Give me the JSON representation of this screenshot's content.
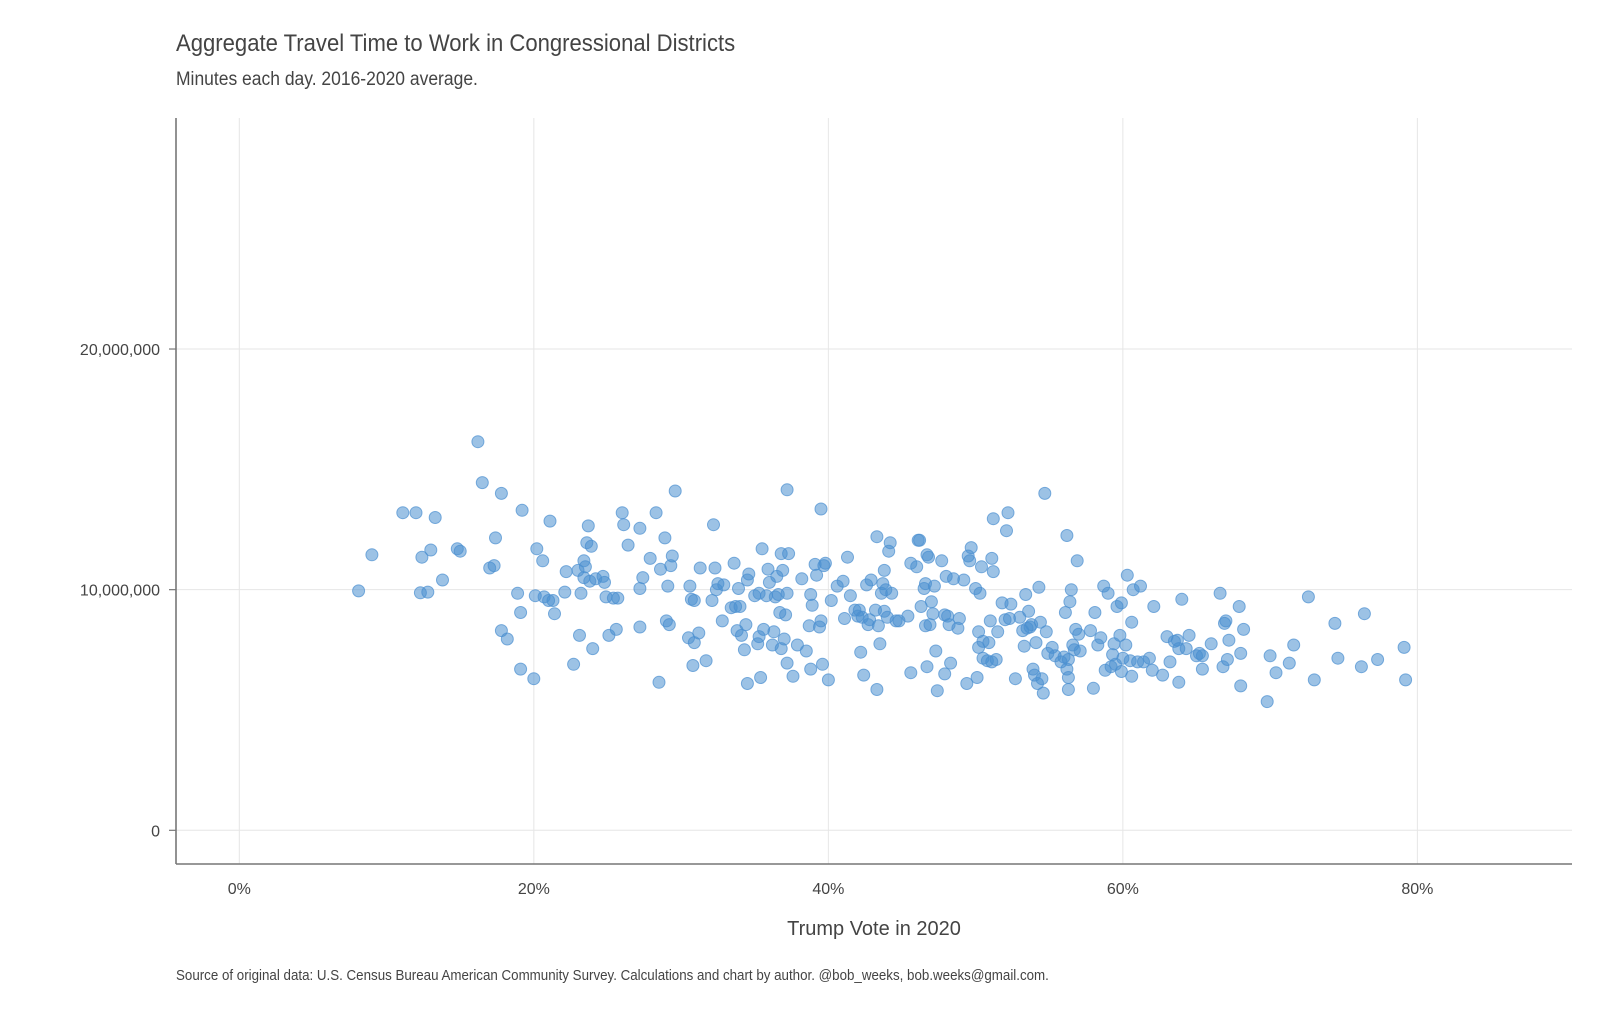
{
  "title": "Aggregate Travel Time to Work in Congressional Districts",
  "subtitle": "Minutes each day. 2016-2020 average.",
  "caption": "Source of original data: U.S. Census Bureau American Community Survey. Calculations and chart by author. @bob_weeks, bob.weeks@gmail.com.",
  "colors": {
    "point": "#4a8fd0",
    "grid": "#e6e6e6",
    "axis": "#777777",
    "text": "#444444"
  },
  "chart_data": {
    "type": "scatter",
    "title": "Aggregate Travel Time to Work in Congressional Districts",
    "subtitle": "Minutes each day. 2016-2020 average.",
    "xlabel": "Trump Vote in 2020",
    "ylabel": "",
    "xlim": [
      -0.043,
      0.905
    ],
    "ylim": [
      -1400000,
      29600000
    ],
    "x_ticks": [
      0,
      0.2,
      0.4,
      0.6,
      0.8
    ],
    "x_tick_labels": [
      "0%",
      "20%",
      "40%",
      "60%",
      "80%"
    ],
    "y_ticks": [
      0,
      10000000,
      20000000
    ],
    "y_tick_labels": [
      "0",
      "10,000,000",
      "20,000,000"
    ],
    "grid": true,
    "legend": "none",
    "points": [
      [
        0.081,
        9950000
      ],
      [
        0.09,
        11450000
      ],
      [
        0.111,
        13200000
      ],
      [
        0.12,
        13200000
      ],
      [
        0.123,
        9870000
      ],
      [
        0.124,
        11350000
      ],
      [
        0.128,
        9900000
      ],
      [
        0.13,
        11650000
      ],
      [
        0.133,
        13000000
      ],
      [
        0.138,
        10400000
      ],
      [
        0.148,
        11700000
      ],
      [
        0.15,
        11600000
      ],
      [
        0.162,
        16150000
      ],
      [
        0.165,
        14450000
      ],
      [
        0.17,
        10900000
      ],
      [
        0.173,
        11000000
      ],
      [
        0.174,
        12150000
      ],
      [
        0.178,
        14000000
      ],
      [
        0.178,
        8300000
      ],
      [
        0.182,
        7950000
      ],
      [
        0.189,
        9850000
      ],
      [
        0.191,
        9050000
      ],
      [
        0.191,
        6700000
      ],
      [
        0.192,
        13300000
      ],
      [
        0.2,
        6300000
      ],
      [
        0.201,
        9750000
      ],
      [
        0.202,
        11700000
      ],
      [
        0.206,
        11200000
      ],
      [
        0.207,
        9700000
      ],
      [
        0.21,
        9550000
      ],
      [
        0.211,
        12850000
      ],
      [
        0.213,
        9550000
      ],
      [
        0.214,
        9000000
      ],
      [
        0.221,
        9900000
      ],
      [
        0.222,
        10750000
      ],
      [
        0.227,
        6900000
      ],
      [
        0.23,
        10800000
      ],
      [
        0.231,
        8100000
      ],
      [
        0.232,
        9850000
      ],
      [
        0.234,
        11200000
      ],
      [
        0.234,
        10500000
      ],
      [
        0.235,
        10950000
      ],
      [
        0.236,
        11950000
      ],
      [
        0.237,
        12650000
      ],
      [
        0.238,
        10350000
      ],
      [
        0.239,
        11800000
      ],
      [
        0.24,
        7550000
      ],
      [
        0.242,
        10450000
      ],
      [
        0.247,
        10550000
      ],
      [
        0.248,
        10300000
      ],
      [
        0.249,
        9700000
      ],
      [
        0.251,
        8100000
      ],
      [
        0.254,
        9650000
      ],
      [
        0.256,
        8350000
      ],
      [
        0.257,
        9650000
      ],
      [
        0.26,
        13200000
      ],
      [
        0.261,
        12700000
      ],
      [
        0.264,
        11850000
      ],
      [
        0.272,
        12550000
      ],
      [
        0.272,
        8450000
      ],
      [
        0.272,
        10050000
      ],
      [
        0.274,
        10500000
      ],
      [
        0.279,
        11300000
      ],
      [
        0.283,
        13200000
      ],
      [
        0.285,
        6150000
      ],
      [
        0.286,
        10850000
      ],
      [
        0.289,
        12150000
      ],
      [
        0.29,
        8700000
      ],
      [
        0.291,
        10150000
      ],
      [
        0.292,
        8550000
      ],
      [
        0.293,
        11000000
      ],
      [
        0.294,
        11400000
      ],
      [
        0.296,
        14100000
      ],
      [
        0.305,
        8000000
      ],
      [
        0.306,
        10150000
      ],
      [
        0.307,
        9600000
      ],
      [
        0.308,
        6850000
      ],
      [
        0.309,
        9550000
      ],
      [
        0.309,
        7800000
      ],
      [
        0.312,
        8200000
      ],
      [
        0.313,
        10900000
      ],
      [
        0.317,
        7050000
      ],
      [
        0.321,
        9550000
      ],
      [
        0.322,
        12700000
      ],
      [
        0.323,
        10900000
      ],
      [
        0.324,
        10000000
      ],
      [
        0.325,
        10250000
      ],
      [
        0.328,
        8700000
      ],
      [
        0.329,
        10200000
      ],
      [
        0.334,
        9250000
      ],
      [
        0.336,
        11100000
      ],
      [
        0.337,
        9300000
      ],
      [
        0.338,
        8300000
      ],
      [
        0.339,
        10050000
      ],
      [
        0.34,
        9300000
      ],
      [
        0.341,
        8100000
      ],
      [
        0.343,
        7500000
      ],
      [
        0.344,
        8550000
      ],
      [
        0.345,
        6100000
      ],
      [
        0.345,
        10400000
      ],
      [
        0.346,
        10650000
      ],
      [
        0.35,
        9750000
      ],
      [
        0.352,
        7750000
      ],
      [
        0.353,
        8050000
      ],
      [
        0.353,
        9850000
      ],
      [
        0.354,
        6350000
      ],
      [
        0.355,
        11700000
      ],
      [
        0.356,
        8350000
      ],
      [
        0.358,
        9750000
      ],
      [
        0.359,
        10850000
      ],
      [
        0.36,
        10300000
      ],
      [
        0.362,
        7700000
      ],
      [
        0.363,
        8250000
      ],
      [
        0.364,
        9700000
      ],
      [
        0.365,
        10550000
      ],
      [
        0.366,
        9800000
      ],
      [
        0.367,
        9050000
      ],
      [
        0.368,
        11500000
      ],
      [
        0.368,
        7550000
      ],
      [
        0.369,
        10800000
      ],
      [
        0.37,
        7950000
      ],
      [
        0.371,
        8950000
      ],
      [
        0.372,
        9850000
      ],
      [
        0.372,
        14150000
      ],
      [
        0.372,
        6950000
      ],
      [
        0.373,
        11500000
      ],
      [
        0.376,
        6400000
      ],
      [
        0.379,
        7700000
      ],
      [
        0.382,
        10450000
      ],
      [
        0.385,
        7450000
      ],
      [
        0.387,
        8500000
      ],
      [
        0.388,
        6700000
      ],
      [
        0.388,
        9800000
      ],
      [
        0.389,
        9350000
      ],
      [
        0.391,
        11050000
      ],
      [
        0.392,
        10600000
      ],
      [
        0.394,
        8450000
      ],
      [
        0.395,
        13350000
      ],
      [
        0.395,
        8700000
      ],
      [
        0.396,
        6900000
      ],
      [
        0.397,
        11000000
      ],
      [
        0.398,
        11100000
      ],
      [
        0.4,
        6250000
      ],
      [
        0.402,
        9550000
      ],
      [
        0.406,
        10150000
      ],
      [
        0.41,
        10350000
      ],
      [
        0.411,
        8800000
      ],
      [
        0.413,
        11350000
      ],
      [
        0.415,
        9750000
      ],
      [
        0.418,
        9150000
      ],
      [
        0.42,
        8900000
      ],
      [
        0.421,
        9150000
      ],
      [
        0.422,
        7400000
      ],
      [
        0.423,
        8850000
      ],
      [
        0.424,
        6450000
      ],
      [
        0.426,
        10200000
      ],
      [
        0.427,
        8550000
      ],
      [
        0.428,
        8750000
      ],
      [
        0.429,
        10400000
      ],
      [
        0.432,
        9150000
      ],
      [
        0.433,
        5850000
      ],
      [
        0.433,
        12200000
      ],
      [
        0.434,
        8500000
      ],
      [
        0.435,
        7750000
      ],
      [
        0.436,
        9850000
      ],
      [
        0.437,
        10250000
      ],
      [
        0.438,
        9100000
      ],
      [
        0.438,
        10800000
      ],
      [
        0.439,
        10000000
      ],
      [
        0.44,
        8850000
      ],
      [
        0.441,
        11600000
      ],
      [
        0.442,
        11950000
      ],
      [
        0.443,
        9850000
      ],
      [
        0.446,
        8700000
      ],
      [
        0.448,
        8700000
      ],
      [
        0.454,
        8900000
      ],
      [
        0.456,
        11100000
      ],
      [
        0.456,
        6550000
      ],
      [
        0.46,
        10950000
      ],
      [
        0.461,
        12050000
      ],
      [
        0.462,
        12050000
      ],
      [
        0.463,
        9300000
      ],
      [
        0.465,
        10050000
      ],
      [
        0.466,
        10250000
      ],
      [
        0.466,
        8500000
      ],
      [
        0.467,
        11450000
      ],
      [
        0.467,
        6800000
      ],
      [
        0.468,
        11350000
      ],
      [
        0.469,
        8550000
      ],
      [
        0.47,
        9500000
      ],
      [
        0.471,
        9000000
      ],
      [
        0.472,
        10150000
      ],
      [
        0.473,
        7450000
      ],
      [
        0.474,
        5800000
      ],
      [
        0.477,
        11200000
      ],
      [
        0.479,
        8950000
      ],
      [
        0.479,
        6500000
      ],
      [
        0.48,
        10550000
      ],
      [
        0.481,
        8900000
      ],
      [
        0.482,
        8550000
      ],
      [
        0.483,
        6950000
      ],
      [
        0.485,
        10450000
      ],
      [
        0.488,
        8400000
      ],
      [
        0.489,
        8800000
      ],
      [
        0.492,
        10400000
      ],
      [
        0.494,
        6100000
      ],
      [
        0.495,
        11400000
      ],
      [
        0.496,
        11200000
      ],
      [
        0.497,
        11750000
      ],
      [
        0.5,
        10050000
      ],
      [
        0.501,
        6350000
      ],
      [
        0.502,
        8250000
      ],
      [
        0.502,
        7600000
      ],
      [
        0.503,
        9850000
      ],
      [
        0.504,
        10950000
      ],
      [
        0.505,
        7850000
      ],
      [
        0.505,
        7150000
      ],
      [
        0.508,
        7050000
      ],
      [
        0.509,
        7800000
      ],
      [
        0.51,
        8700000
      ],
      [
        0.511,
        7000000
      ],
      [
        0.511,
        11300000
      ],
      [
        0.512,
        12950000
      ],
      [
        0.512,
        10750000
      ],
      [
        0.514,
        7100000
      ],
      [
        0.515,
        8250000
      ],
      [
        0.518,
        9450000
      ],
      [
        0.52,
        8750000
      ],
      [
        0.521,
        12450000
      ],
      [
        0.522,
        13200000
      ],
      [
        0.523,
        8800000
      ],
      [
        0.524,
        9400000
      ],
      [
        0.527,
        6300000
      ],
      [
        0.53,
        8850000
      ],
      [
        0.532,
        8300000
      ],
      [
        0.533,
        7650000
      ],
      [
        0.534,
        9800000
      ],
      [
        0.535,
        8400000
      ],
      [
        0.536,
        9100000
      ],
      [
        0.537,
        8450000
      ],
      [
        0.538,
        8550000
      ],
      [
        0.539,
        6700000
      ],
      [
        0.54,
        6450000
      ],
      [
        0.541,
        7800000
      ],
      [
        0.542,
        6100000
      ],
      [
        0.543,
        10100000
      ],
      [
        0.544,
        8650000
      ],
      [
        0.545,
        6300000
      ],
      [
        0.546,
        5700000
      ],
      [
        0.547,
        14000000
      ],
      [
        0.548,
        8250000
      ],
      [
        0.549,
        7350000
      ],
      [
        0.552,
        7600000
      ],
      [
        0.554,
        7250000
      ],
      [
        0.558,
        7000000
      ],
      [
        0.56,
        7200000
      ],
      [
        0.561,
        9050000
      ],
      [
        0.562,
        12250000
      ],
      [
        0.562,
        6700000
      ],
      [
        0.563,
        7100000
      ],
      [
        0.563,
        6350000
      ],
      [
        0.563,
        5850000
      ],
      [
        0.564,
        9500000
      ],
      [
        0.565,
        10000000
      ],
      [
        0.566,
        7700000
      ],
      [
        0.567,
        7500000
      ],
      [
        0.568,
        8350000
      ],
      [
        0.569,
        11200000
      ],
      [
        0.57,
        8150000
      ],
      [
        0.571,
        7450000
      ],
      [
        0.578,
        8300000
      ],
      [
        0.58,
        5900000
      ],
      [
        0.581,
        9050000
      ],
      [
        0.583,
        7700000
      ],
      [
        0.585,
        8000000
      ],
      [
        0.587,
        10150000
      ],
      [
        0.588,
        6650000
      ],
      [
        0.59,
        9850000
      ],
      [
        0.592,
        6800000
      ],
      [
        0.593,
        7300000
      ],
      [
        0.594,
        7750000
      ],
      [
        0.595,
        6900000
      ],
      [
        0.596,
        9300000
      ],
      [
        0.598,
        8100000
      ],
      [
        0.599,
        6600000
      ],
      [
        0.599,
        9450000
      ],
      [
        0.6,
        7150000
      ],
      [
        0.602,
        7700000
      ],
      [
        0.603,
        10600000
      ],
      [
        0.605,
        7050000
      ],
      [
        0.606,
        6400000
      ],
      [
        0.606,
        8650000
      ],
      [
        0.607,
        10000000
      ],
      [
        0.61,
        7000000
      ],
      [
        0.612,
        10150000
      ],
      [
        0.614,
        7000000
      ],
      [
        0.618,
        7150000
      ],
      [
        0.62,
        6650000
      ],
      [
        0.621,
        9300000
      ],
      [
        0.627,
        6450000
      ],
      [
        0.63,
        8050000
      ],
      [
        0.632,
        7000000
      ],
      [
        0.635,
        7850000
      ],
      [
        0.637,
        7900000
      ],
      [
        0.638,
        7550000
      ],
      [
        0.638,
        6150000
      ],
      [
        0.64,
        9600000
      ],
      [
        0.643,
        7550000
      ],
      [
        0.645,
        8100000
      ],
      [
        0.65,
        7250000
      ],
      [
        0.652,
        7350000
      ],
      [
        0.654,
        6700000
      ],
      [
        0.654,
        7250000
      ],
      [
        0.66,
        7750000
      ],
      [
        0.666,
        9850000
      ],
      [
        0.668,
        6800000
      ],
      [
        0.669,
        8600000
      ],
      [
        0.67,
        8700000
      ],
      [
        0.671,
        7100000
      ],
      [
        0.672,
        7900000
      ],
      [
        0.679,
        9300000
      ],
      [
        0.68,
        6000000
      ],
      [
        0.68,
        7350000
      ],
      [
        0.682,
        8350000
      ],
      [
        0.698,
        5350000
      ],
      [
        0.7,
        7250000
      ],
      [
        0.704,
        6550000
      ],
      [
        0.713,
        6950000
      ],
      [
        0.716,
        7700000
      ],
      [
        0.726,
        9700000
      ],
      [
        0.73,
        6250000
      ],
      [
        0.744,
        8600000
      ],
      [
        0.746,
        7150000
      ],
      [
        0.762,
        6800000
      ],
      [
        0.764,
        9000000
      ],
      [
        0.773,
        7100000
      ],
      [
        0.791,
        7600000
      ],
      [
        0.792,
        6250000
      ]
    ]
  }
}
